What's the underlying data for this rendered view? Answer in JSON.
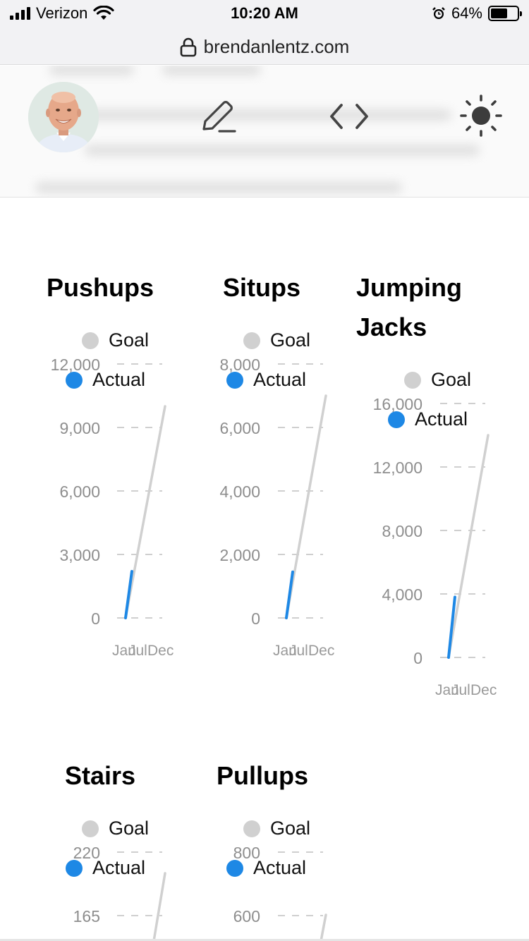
{
  "status_bar": {
    "carrier": "Verizon",
    "time": "10:20 AM",
    "battery": "64%",
    "battery_level": 0.64
  },
  "browser": {
    "url": "brendanlentz.com"
  },
  "header": {
    "icons": [
      "pencil-icon",
      "code-icon",
      "sun-icon"
    ]
  },
  "charts": [
    {
      "title": "Pushups",
      "legend_goal": "Goal",
      "legend_actual": "Actual",
      "y_ticks": [
        "12,000",
        "9,000",
        "6,000",
        "3,000",
        "0"
      ],
      "x_ticks": [
        "Jan",
        "Jul",
        "Dec"
      ]
    },
    {
      "title": "Situps",
      "legend_goal": "Goal",
      "legend_actual": "Actual",
      "y_ticks": [
        "8,000",
        "6,000",
        "4,000",
        "2,000",
        "0"
      ],
      "x_ticks": [
        "Jan",
        "Jul",
        "Dec"
      ]
    },
    {
      "title_line1": "Jumping",
      "title_line2": "Jacks",
      "legend_goal": "Goal",
      "legend_actual": "Actual",
      "y_ticks": [
        "16,000",
        "12,000",
        "8,000",
        "4,000",
        "0"
      ],
      "x_ticks": [
        "Jan",
        "Jul",
        "Dec"
      ]
    },
    {
      "title": "Stairs",
      "legend_goal": "Goal",
      "legend_actual": "Actual",
      "y_ticks": [
        "220",
        "165"
      ]
    },
    {
      "title": "Pullups",
      "legend_goal": "Goal",
      "legend_actual": "Actual",
      "y_ticks": [
        "800",
        "600"
      ]
    }
  ],
  "colors": {
    "goal": "#d0d0d0",
    "actual": "#1e88e5",
    "tick_text": "#8e8e8e"
  },
  "chart_data": [
    {
      "type": "line",
      "title": "Pushups",
      "x": [
        "Jan",
        "Jul",
        "Dec"
      ],
      "ylim": [
        0,
        12000
      ],
      "series": [
        {
          "name": "Goal",
          "x": [
            0,
            1
          ],
          "values": [
            0,
            10000
          ]
        },
        {
          "name": "Actual",
          "x": [
            0,
            0.16
          ],
          "values": [
            0,
            2200
          ]
        }
      ]
    },
    {
      "type": "line",
      "title": "Situps",
      "x": [
        "Jan",
        "Jul",
        "Dec"
      ],
      "ylim": [
        0,
        8000
      ],
      "series": [
        {
          "name": "Goal",
          "x": [
            0,
            1
          ],
          "values": [
            0,
            7000
          ]
        },
        {
          "name": "Actual",
          "x": [
            0,
            0.16
          ],
          "values": [
            0,
            1450
          ]
        }
      ]
    },
    {
      "type": "line",
      "title": "Jumping Jacks",
      "x": [
        "Jan",
        "Jul",
        "Dec"
      ],
      "ylim": [
        0,
        16000
      ],
      "series": [
        {
          "name": "Goal",
          "x": [
            0,
            1
          ],
          "values": [
            0,
            14000
          ]
        },
        {
          "name": "Actual",
          "x": [
            0,
            0.16
          ],
          "values": [
            0,
            3800
          ]
        }
      ]
    },
    {
      "type": "line",
      "title": "Stairs",
      "ylim": [
        0,
        220
      ],
      "series": [
        {
          "name": "Goal",
          "values": []
        },
        {
          "name": "Actual",
          "values": []
        }
      ]
    },
    {
      "type": "line",
      "title": "Pullups",
      "ylim": [
        0,
        800
      ],
      "series": [
        {
          "name": "Goal",
          "values": []
        },
        {
          "name": "Actual",
          "values": []
        }
      ]
    }
  ]
}
